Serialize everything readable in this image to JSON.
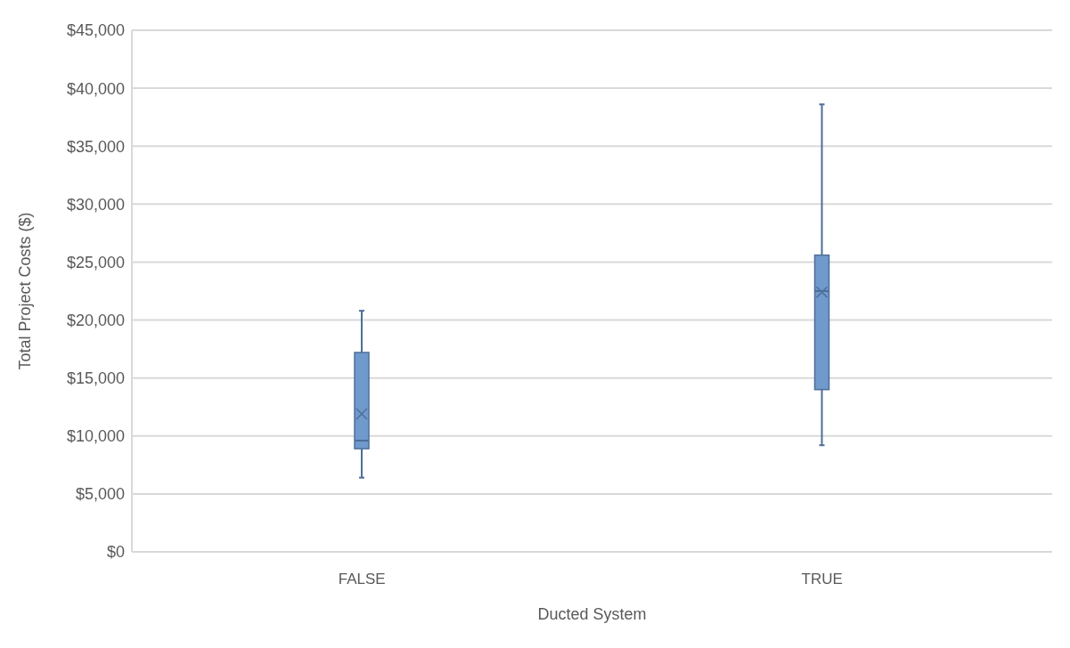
{
  "chart_data": {
    "type": "box",
    "xlabel": "Ducted System",
    "ylabel": "Total Project Costs ($)",
    "categories": [
      "FALSE",
      "TRUE"
    ],
    "boxes": [
      {
        "low": 6400,
        "q1": 8900,
        "median": 9600,
        "q3": 17200,
        "high": 20800,
        "mean": 11900
      },
      {
        "low": 9200,
        "q1": 14000,
        "median": 22500,
        "q3": 25600,
        "high": 38600,
        "mean": 22400
      }
    ],
    "color": "#7099cc",
    "ylim": [
      0,
      45000
    ],
    "yticks": [
      {
        "value": 0,
        "label": "$0"
      },
      {
        "value": 5000,
        "label": "$5,000"
      },
      {
        "value": 10000,
        "label": "$10,000"
      },
      {
        "value": 15000,
        "label": "$15,000"
      },
      {
        "value": 20000,
        "label": "$20,000"
      },
      {
        "value": 25000,
        "label": "$25,000"
      },
      {
        "value": 30000,
        "label": "$30,000"
      },
      {
        "value": 35000,
        "label": "$35,000"
      },
      {
        "value": 40000,
        "label": "$40,000"
      },
      {
        "value": 45000,
        "label": "$45,000"
      }
    ],
    "grid": "y"
  }
}
